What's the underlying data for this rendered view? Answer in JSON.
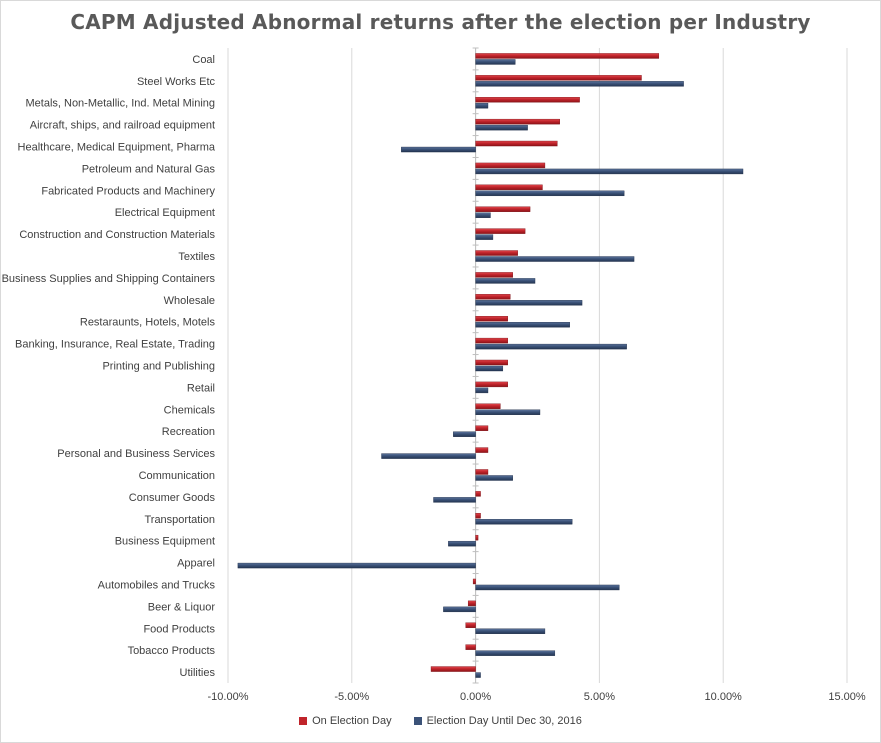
{
  "chart_data": {
    "type": "bar",
    "orientation": "horizontal",
    "title": "CAPM Adjusted Abnormal returns after the election per Industry",
    "xlabel": "",
    "ylabel": "",
    "xlim": [
      -0.1,
      0.15
    ],
    "x_ticks": [
      -0.1,
      -0.05,
      0.0,
      0.05,
      0.1,
      0.15
    ],
    "x_tick_labels": [
      "-10.00%",
      "-5.00%",
      "0.00%",
      "5.00%",
      "10.00%",
      "15.00%"
    ],
    "grid": "vertical gridlines",
    "legend_position": "bottom",
    "categories": [
      "Coal",
      "Steel Works Etc",
      "Metals, Non-Metallic, Ind. Metal Mining",
      "Aircraft, ships, and railroad equipment",
      "Healthcare, Medical Equipment, Pharma",
      "Petroleum and Natural Gas",
      "Fabricated Products and Machinery",
      "Electrical Equipment",
      "Construction and Construction Materials",
      "Textiles",
      "Business Supplies and Shipping Containers",
      "Wholesale",
      "Restaraunts, Hotels, Motels",
      "Banking, Insurance, Real Estate, Trading",
      "Printing and Publishing",
      "Retail",
      "Chemicals",
      "Recreation",
      "Personal and Business Services",
      "Communication",
      "Consumer Goods",
      "Transportation",
      "Business Equipment",
      "Apparel",
      "Automobiles and Trucks",
      "Beer & Liquor",
      "Food Products",
      "Tobacco Products",
      "Utilities"
    ],
    "series": [
      {
        "name": "On Election Day",
        "color": "#c0242b",
        "values": [
          0.074,
          0.067,
          0.042,
          0.034,
          0.033,
          0.028,
          0.027,
          0.022,
          0.02,
          0.017,
          0.015,
          0.014,
          0.013,
          0.013,
          0.013,
          0.013,
          0.01,
          0.005,
          0.005,
          0.005,
          0.002,
          0.002,
          0.001,
          0.0,
          -0.001,
          -0.003,
          -0.004,
          -0.004,
          -0.018
        ]
      },
      {
        "name": "Election Day Until Dec 30, 2016",
        "color": "#3b5278",
        "values": [
          0.016,
          0.084,
          0.005,
          0.021,
          -0.03,
          0.108,
          0.06,
          0.006,
          0.007,
          0.064,
          0.024,
          0.043,
          0.038,
          0.061,
          0.011,
          0.005,
          0.026,
          -0.009,
          -0.038,
          0.015,
          -0.017,
          0.039,
          -0.011,
          -0.096,
          0.058,
          -0.013,
          0.028,
          0.032,
          0.002
        ]
      }
    ]
  }
}
